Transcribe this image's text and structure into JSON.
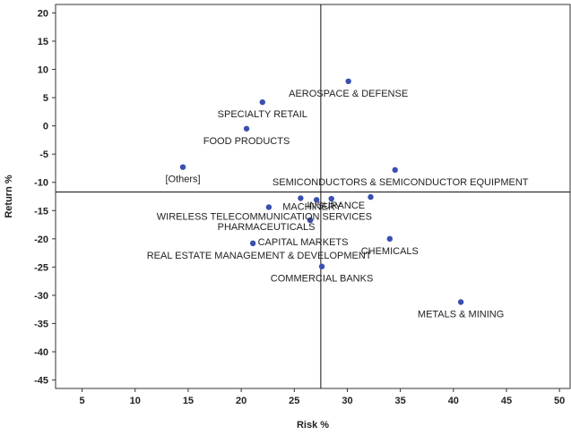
{
  "chart_data": {
    "type": "scatter",
    "title": "",
    "xlabel": "Risk %",
    "ylabel": "Return %",
    "xlim": [
      2.5,
      51
    ],
    "ylim": [
      -46.5,
      21.5
    ],
    "xticks": [
      5,
      10,
      15,
      20,
      25,
      30,
      35,
      40,
      45,
      50
    ],
    "yticks": [
      20,
      15,
      10,
      5,
      0,
      -5,
      -10,
      -15,
      -20,
      -25,
      -30,
      -35,
      -40,
      -45
    ],
    "grid": false,
    "legend": "none",
    "point_color": "#3a4fb0",
    "reference_lines": {
      "x": 27.5,
      "y": -11.7
    },
    "points": [
      {
        "label": "AEROSPACE & DEFENSE",
        "x": 30.1,
        "y": 7.9
      },
      {
        "label": "SPECIALTY RETAIL",
        "x": 22.0,
        "y": 4.2
      },
      {
        "label": "FOOD PRODUCTS",
        "x": 20.5,
        "y": -0.5
      },
      {
        "label": "[Others]",
        "x": 14.5,
        "y": -7.3
      },
      {
        "label": "SEMICONDUCTORS & SEMICONDUCTOR EQUIPMENT",
        "x": 34.5,
        "y": -7.8
      },
      {
        "label": "WIRELESS TELECOMMUNICATION SERVICES",
        "x": 22.6,
        "y": -14.4
      },
      {
        "label": "MACHINERY",
        "x": 27.1,
        "y": -13.1
      },
      {
        "label": "INSURANCE",
        "x": 28.5,
        "y": -12.9
      },
      {
        "label": "",
        "x": 25.6,
        "y": -12.8
      },
      {
        "label": "",
        "x": 32.2,
        "y": -12.6
      },
      {
        "label": "PHARMACEUTICALS",
        "x": 26.5,
        "y": -16.7
      },
      {
        "label": "CAPITAL MARKETS",
        "x": 26.5,
        "y": -16.7
      },
      {
        "label": "CHEMICALS",
        "x": 34.0,
        "y": -20.0
      },
      {
        "label": "REAL ESTATE MANAGEMENT & DEVELOPMENT",
        "x": 21.1,
        "y": -20.8
      },
      {
        "label": "COMMERCIAL BANKS",
        "x": 27.6,
        "y": -24.9
      },
      {
        "label": "METALS & MINING",
        "x": 40.7,
        "y": -31.2
      }
    ]
  }
}
